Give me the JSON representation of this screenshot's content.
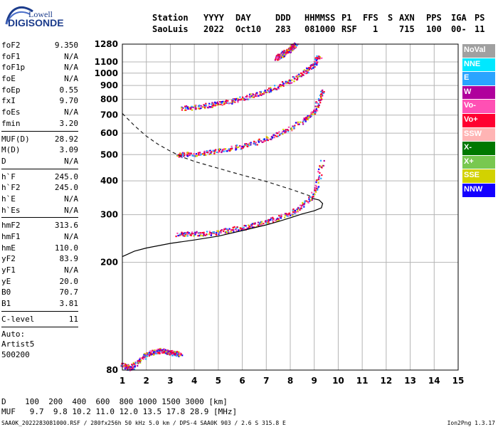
{
  "logo": {
    "line1": "Lowell",
    "line2": "DIGISONDE"
  },
  "header": {
    "labels": [
      "Station",
      "YYYY",
      "DAY",
      "DDD",
      "HHMMSS",
      "P1",
      "FFS",
      "S",
      "AXN",
      "PPS",
      "IGA",
      "PS"
    ],
    "values": [
      "SaoLuis",
      "2022",
      "Oct10",
      "283",
      "081000",
      "RSF",
      "1",
      "715",
      "100",
      "00-",
      "11"
    ]
  },
  "params_group1": [
    {
      "name": "foF2",
      "value": "9.350"
    },
    {
      "name": "foF1",
      "value": "N/A"
    },
    {
      "name": "foF1p",
      "value": "N/A"
    },
    {
      "name": "foE",
      "value": "N/A"
    },
    {
      "name": "foEp",
      "value": "0.55"
    },
    {
      "name": "fxI",
      "value": "9.70"
    },
    {
      "name": "foEs",
      "value": "N/A"
    },
    {
      "name": "fmin",
      "value": "3.20"
    }
  ],
  "params_group2": [
    {
      "name": "MUF(D)",
      "value": "28.92"
    },
    {
      "name": "M(D)",
      "value": "3.09"
    },
    {
      "name": "D",
      "value": "N/A"
    }
  ],
  "params_group3": [
    {
      "name": "h`F",
      "value": "245.0"
    },
    {
      "name": "h`F2",
      "value": "245.0"
    },
    {
      "name": "h`E",
      "value": "N/A"
    },
    {
      "name": "h`Es",
      "value": "N/A"
    }
  ],
  "params_group4": [
    {
      "name": "hmF2",
      "value": "313.6"
    },
    {
      "name": "hmF1",
      "value": "N/A"
    },
    {
      "name": "hmE",
      "value": "110.0"
    },
    {
      "name": "yF2",
      "value": "83.9"
    },
    {
      "name": "yF1",
      "value": "N/A"
    },
    {
      "name": "yE",
      "value": "20.0"
    },
    {
      "name": "B0",
      "value": "70.7"
    },
    {
      "name": "B1",
      "value": "3.81"
    }
  ],
  "clevel": {
    "name": "C-level",
    "value": "11"
  },
  "autoscale": {
    "line1": "Auto:",
    "line2": "Artist5",
    "line3": "500200"
  },
  "legend": [
    {
      "label": "NoVal",
      "color": "#a0a0a0"
    },
    {
      "label": "NNE",
      "color": "#00e8ff"
    },
    {
      "label": "E",
      "color": "#2aa4ff"
    },
    {
      "label": "W",
      "color": "#b0009c"
    },
    {
      "label": "Vo-",
      "color": "#ff50b4"
    },
    {
      "label": "Vo+",
      "color": "#ff0030"
    },
    {
      "label": "SSW",
      "color": "#ffb4b4"
    },
    {
      "label": "X-",
      "color": "#007800"
    },
    {
      "label": "X+",
      "color": "#78c850"
    },
    {
      "label": "SSE",
      "color": "#d2d200"
    },
    {
      "label": "NNW",
      "color": "#1400ff"
    }
  ],
  "muf_table": {
    "row1": "D    100  200  400  600  800 1000 1500 3000 [km]",
    "row2": "MUF   9.7  9.8 10.2 11.0 12.0 13.5 17.8 28.9 [MHz]"
  },
  "footer": {
    "left": "SAA0K_2022283081000.RSF / 280fx256h 50 kHz 5.0 km / DPS-4 SAA0K 903 / 2.6 S 315.8 E",
    "right": "Ion2Png 1.3.17"
  },
  "chart_data": {
    "type": "scatter",
    "title": "",
    "xlabel": "",
    "ylabel": "",
    "xlim": [
      1,
      15
    ],
    "ylim": [
      80,
      1280
    ],
    "y_scale": "log",
    "xticks": [
      1,
      2,
      3,
      4,
      5,
      6,
      7,
      8,
      9,
      10,
      11,
      12,
      13,
      14,
      15
    ],
    "yticks": [
      80,
      200,
      300,
      400,
      500,
      600,
      700,
      800,
      900,
      1000,
      1100,
      1280
    ],
    "grid": true,
    "series": [
      {
        "name": "",
        "style": "points",
        "x": [
          3.3,
          3.6,
          4.0,
          4.5,
          5.0,
          5.5,
          6.0,
          6.5,
          7.0,
          7.5,
          8.0,
          8.4,
          8.8,
          9.1,
          9.3
        ],
        "y": [
          255,
          256,
          256,
          257,
          260,
          265,
          270,
          276,
          284,
          293,
          305,
          320,
          345,
          385,
          470
        ]
      },
      {
        "name": "",
        "style": "points",
        "x": [
          3.3,
          3.5,
          4.0,
          4.5,
          5.0,
          5.5,
          6.0,
          6.5,
          7.0,
          7.5,
          8.0,
          8.5,
          8.8,
          9.0,
          9.2,
          9.3
        ],
        "y": [
          500,
          502,
          505,
          510,
          518,
          528,
          540,
          555,
          575,
          600,
          630,
          670,
          700,
          730,
          800,
          870
        ]
      },
      {
        "name": "",
        "style": "points",
        "x": [
          3.5,
          4.0,
          4.5,
          5.0,
          5.5,
          6.0,
          6.5,
          7.0,
          7.5,
          8.0,
          8.5,
          8.8,
          9.0,
          9.2
        ],
        "y": [
          745,
          752,
          762,
          775,
          790,
          810,
          835,
          865,
          900,
          945,
          1000,
          1050,
          1100,
          1160
        ]
      },
      {
        "name": "",
        "style": "points",
        "x": [
          7.4,
          7.6,
          7.8,
          8.0,
          8.2
        ],
        "y": [
          1140,
          1170,
          1200,
          1240,
          1280
        ]
      },
      {
        "name": "",
        "style": "points",
        "x": [
          1.0,
          1.3,
          2.0,
          2.6,
          3.0,
          3.4
        ],
        "y": [
          84,
          81,
          92,
          95,
          93,
          92
        ]
      },
      {
        "name": "",
        "style": "solid",
        "x": [
          1.0,
          1.5,
          2.0,
          3.0,
          4.0,
          5.0,
          6.0,
          7.0,
          7.5,
          8.0,
          8.5,
          9.0,
          9.3,
          9.35,
          9.2,
          8.9
        ],
        "y": [
          210,
          220,
          226,
          235,
          242,
          250,
          262,
          275,
          283,
          292,
          302,
          310,
          318,
          330,
          340,
          345
        ]
      },
      {
        "name": "",
        "style": "dashed",
        "x": [
          1.0,
          1.5,
          2.0,
          2.5,
          3.0,
          3.5,
          4.0,
          5.0,
          6.0,
          7.0,
          8.0,
          8.5,
          8.9
        ],
        "y": [
          710,
          640,
          585,
          545,
          515,
          490,
          472,
          445,
          420,
          398,
          373,
          360,
          350
        ]
      }
    ]
  }
}
